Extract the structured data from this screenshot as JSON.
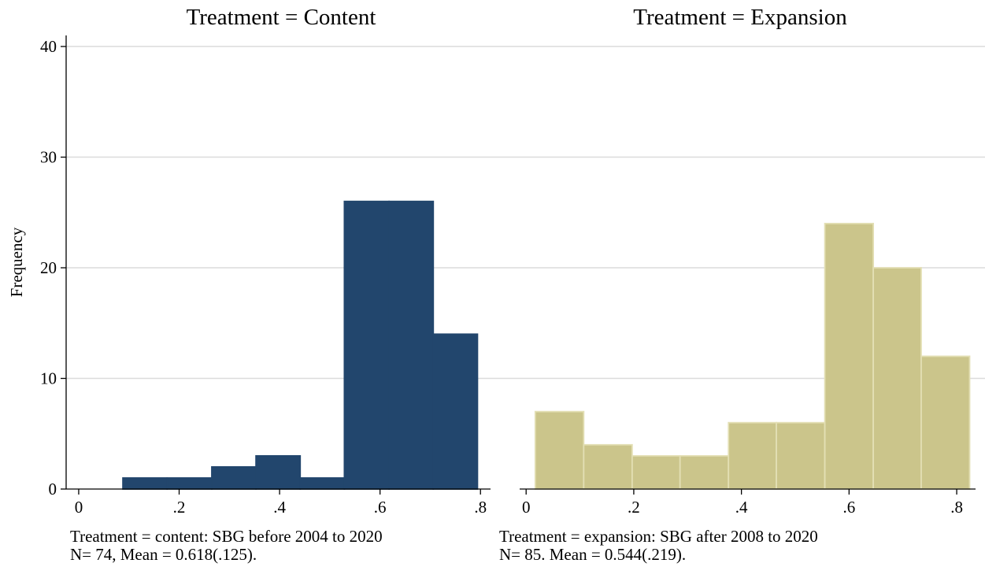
{
  "chart_data": {
    "type": "bar",
    "ylabel": "Frequency",
    "ylim": [
      0,
      41
    ],
    "yticks": [
      0,
      10,
      20,
      30,
      40
    ],
    "grid": true,
    "panels": [
      {
        "title": "Treatment = Content",
        "xlim": [
          -0.025,
          0.82
        ],
        "xticks": [
          {
            "v": 0,
            "label": "0"
          },
          {
            "v": 0.2,
            "label": ".2"
          },
          {
            "v": 0.4,
            "label": ".4"
          },
          {
            "v": 0.6,
            "label": ".6"
          },
          {
            "v": 0.8,
            "label": ".8"
          }
        ],
        "bar_color": "#22466d",
        "bar_edge": "#22466d",
        "bins": [
          {
            "start": 0.088,
            "end": 0.176,
            "value": 1
          },
          {
            "start": 0.176,
            "end": 0.265,
            "value": 1
          },
          {
            "start": 0.265,
            "end": 0.353,
            "value": 2
          },
          {
            "start": 0.353,
            "end": 0.441,
            "value": 3
          },
          {
            "start": 0.441,
            "end": 0.529,
            "value": 1
          },
          {
            "start": 0.529,
            "end": 0.618,
            "value": 26
          },
          {
            "start": 0.618,
            "end": 0.706,
            "value": 26
          },
          {
            "start": 0.706,
            "end": 0.794,
            "value": 14
          }
        ],
        "note_line1": "Treatment = content: SBG before 2004 to 2020",
        "note_line2": "N= 74, Mean = 0.618(.125)."
      },
      {
        "title": "Treatment = Expansion",
        "xlim": [
          -0.012,
          0.835
        ],
        "xticks": [
          {
            "v": 0,
            "label": "0"
          },
          {
            "v": 0.2,
            "label": ".2"
          },
          {
            "v": 0.4,
            "label": ".4"
          },
          {
            "v": 0.6,
            "label": ".6"
          },
          {
            "v": 0.8,
            "label": ".8"
          }
        ],
        "bar_color": "#cbc58b",
        "bar_edge": "#e3dfb4",
        "bins": [
          {
            "start": 0.017,
            "end": 0.107,
            "value": 7
          },
          {
            "start": 0.107,
            "end": 0.197,
            "value": 4
          },
          {
            "start": 0.197,
            "end": 0.286,
            "value": 3
          },
          {
            "start": 0.286,
            "end": 0.376,
            "value": 3
          },
          {
            "start": 0.376,
            "end": 0.465,
            "value": 6
          },
          {
            "start": 0.465,
            "end": 0.555,
            "value": 6
          },
          {
            "start": 0.555,
            "end": 0.645,
            "value": 24
          },
          {
            "start": 0.645,
            "end": 0.734,
            "value": 20
          },
          {
            "start": 0.734,
            "end": 0.824,
            "value": 12
          }
        ],
        "note_line1": "Treatment = expansion: SBG after 2008 to 2020",
        "note_line2": "N= 85. Mean = 0.544(.219)."
      }
    ]
  }
}
